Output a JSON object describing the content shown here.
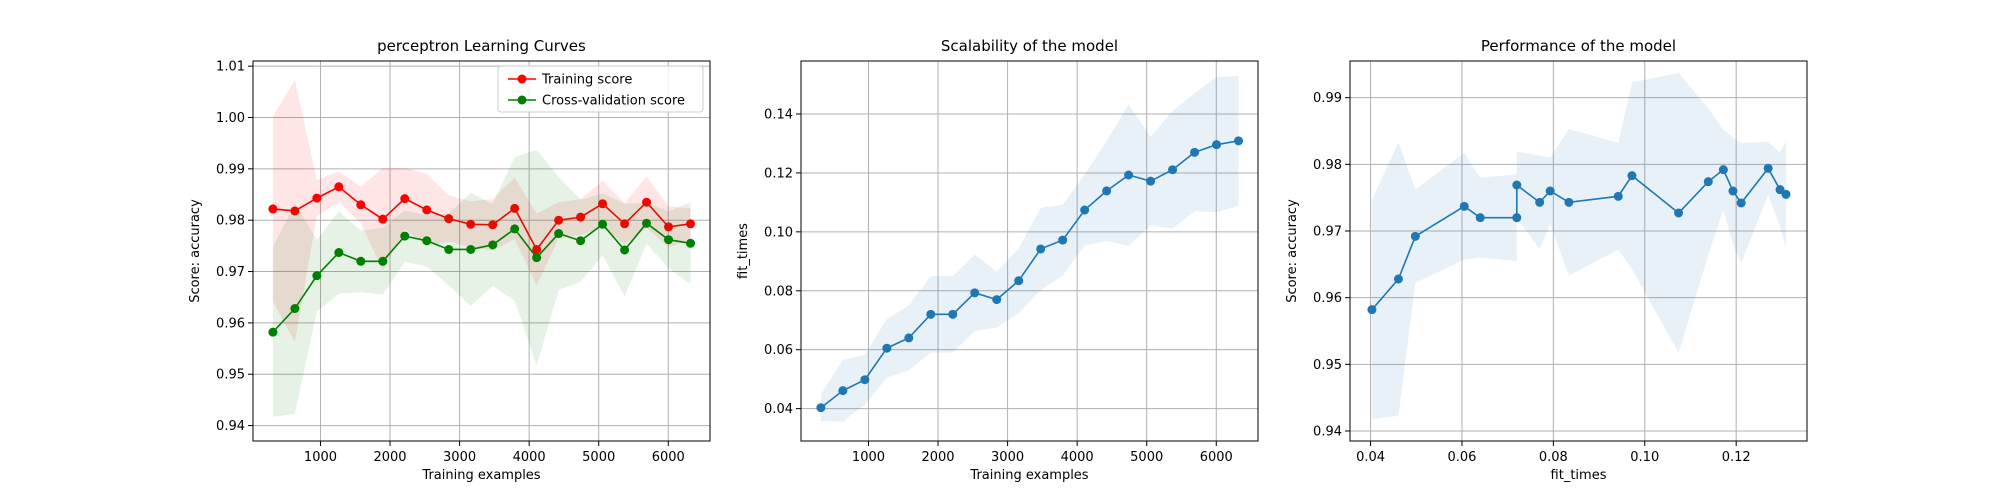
{
  "chart_data": [
    {
      "type": "line",
      "title": "perceptron Learning Curves",
      "xlabel": "Training examples",
      "ylabel": "Score: accuracy",
      "xlim": [
        30,
        6600
      ],
      "ylim": [
        0.937,
        1.011
      ],
      "xticks": [
        1000,
        2000,
        3000,
        4000,
        5000,
        6000
      ],
      "yticks": [
        0.94,
        0.95,
        0.96,
        0.97,
        0.98,
        0.99,
        1.0,
        1.01
      ],
      "ytick_labels": [
        "0.94",
        "0.95",
        "0.96",
        "0.97",
        "0.98",
        "0.99",
        "1.00",
        "1.01"
      ],
      "grid": true,
      "legend": "top-right",
      "x": [
        316,
        632,
        948,
        1264,
        1580,
        1896,
        2212,
        2528,
        2844,
        3160,
        3476,
        3792,
        4108,
        4424,
        4740,
        5056,
        5372,
        5688,
        6004,
        6320
      ],
      "series": [
        {
          "name": "Training score",
          "color": "#ff0000",
          "values": [
            0.9822,
            0.9818,
            0.9843,
            0.9865,
            0.983,
            0.9802,
            0.9842,
            0.982,
            0.9803,
            0.9792,
            0.9791,
            0.9823,
            0.9743,
            0.98,
            0.9806,
            0.9832,
            0.9793,
            0.9835,
            0.9787,
            0.9793
          ],
          "std": [
            0.018,
            0.0255,
            0.0035,
            0.003,
            0.0035,
            0.01,
            0.006,
            0.007,
            0.0045,
            0.0045,
            0.005,
            0.006,
            0.007,
            0.0035,
            0.0035,
            0.0045,
            0.004,
            0.005,
            0.004,
            0.003
          ]
        },
        {
          "name": "Cross-validation score",
          "color": "#008000",
          "values": [
            0.9582,
            0.9628,
            0.9692,
            0.9737,
            0.972,
            0.972,
            0.9769,
            0.976,
            0.9743,
            0.9743,
            0.9752,
            0.9783,
            0.9727,
            0.9774,
            0.976,
            0.9792,
            0.9742,
            0.9794,
            0.9762,
            0.9755
          ],
          "std": [
            0.0165,
            0.0205,
            0.007,
            0.008,
            0.006,
            0.0065,
            0.005,
            0.005,
            0.007,
            0.011,
            0.008,
            0.014,
            0.021,
            0.011,
            0.008,
            0.006,
            0.009,
            0.004,
            0.0055,
            0.008
          ]
        }
      ]
    },
    {
      "type": "line",
      "title": "Scalability of the model",
      "xlabel": "Training examples",
      "ylabel": "fit_times",
      "xlim": [
        30,
        6600
      ],
      "ylim": [
        0.029,
        0.158
      ],
      "xticks": [
        1000,
        2000,
        3000,
        4000,
        5000,
        6000
      ],
      "yticks": [
        0.04,
        0.06,
        0.08,
        0.1,
        0.12,
        0.14
      ],
      "ytick_labels": [
        "0.04",
        "0.06",
        "0.08",
        "0.10",
        "0.12",
        "0.14"
      ],
      "grid": true,
      "x": [
        316,
        632,
        948,
        1264,
        1580,
        1896,
        2212,
        2528,
        2844,
        3160,
        3476,
        3792,
        4108,
        4424,
        4740,
        5056,
        5372,
        5688,
        6004,
        6320
      ],
      "series": [
        {
          "color": "#1f77b4",
          "values": [
            0.0403,
            0.0461,
            0.0498,
            0.0605,
            0.064,
            0.072,
            0.072,
            0.0793,
            0.077,
            0.0834,
            0.0942,
            0.0972,
            0.1074,
            0.1139,
            0.1193,
            0.1172,
            0.1211,
            0.127,
            0.1296,
            0.1309
          ],
          "std": [
            0.0045,
            0.0105,
            0.0085,
            0.01,
            0.011,
            0.013,
            0.013,
            0.013,
            0.0095,
            0.011,
            0.014,
            0.012,
            0.012,
            0.017,
            0.024,
            0.015,
            0.02,
            0.02,
            0.023,
            0.022
          ]
        }
      ]
    },
    {
      "type": "line",
      "title": "Performance of the model",
      "xlabel": "fit_times",
      "ylabel": "Score: accuracy",
      "xlim": [
        0.0355,
        0.1355
      ],
      "ylim": [
        0.9385,
        0.9955
      ],
      "xticks": [
        0.04,
        0.06,
        0.08,
        0.1,
        0.12
      ],
      "xtick_labels": [
        "0.04",
        "0.06",
        "0.08",
        "0.10",
        "0.12"
      ],
      "yticks": [
        0.94,
        0.95,
        0.96,
        0.97,
        0.98,
        0.99
      ],
      "ytick_labels": [
        "0.94",
        "0.95",
        "0.96",
        "0.97",
        "0.98",
        "0.99"
      ],
      "grid": true,
      "series": [
        {
          "color": "#1f77b4",
          "x": [
            0.0403,
            0.0461,
            0.0498,
            0.0605,
            0.064,
            0.072,
            0.072,
            0.077,
            0.0793,
            0.0834,
            0.0942,
            0.0972,
            0.1074,
            0.1139,
            0.1172,
            0.1193,
            0.1211,
            0.127,
            0.1296,
            0.1309
          ],
          "values": [
            0.9582,
            0.9628,
            0.9692,
            0.9737,
            0.972,
            0.972,
            0.9769,
            0.9743,
            0.976,
            0.9743,
            0.9752,
            0.9783,
            0.9727,
            0.9774,
            0.9792,
            0.976,
            0.9742,
            0.9794,
            0.9762,
            0.9755
          ],
          "std": [
            0.0165,
            0.0205,
            0.007,
            0.008,
            0.006,
            0.0065,
            0.005,
            0.007,
            0.005,
            0.011,
            0.008,
            0.014,
            0.021,
            0.011,
            0.006,
            0.008,
            0.009,
            0.004,
            0.0055,
            0.008
          ]
        }
      ]
    }
  ]
}
